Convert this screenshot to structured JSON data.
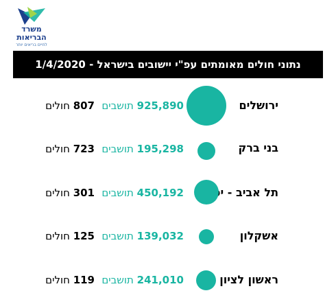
{
  "logo": {
    "line1": "משרד",
    "line2": "הבריאות",
    "line3": "לחיים בריאים יותר"
  },
  "title": "נתוני חולים מאומתים עפ\"י יישובים בישראל - 1/4/2020",
  "units": {
    "residents": "תושבים",
    "patients": "חולים"
  },
  "colors": {
    "accent": "#19b5a2",
    "title_bg": "#000000"
  },
  "cities": [
    {
      "name": "ירושלים",
      "population": "925,890",
      "cases": "807"
    },
    {
      "name": "בני ברק",
      "population": "195,298",
      "cases": "723"
    },
    {
      "name": "תל אביב - יפו",
      "population": "450,192",
      "cases": "301"
    },
    {
      "name": "אשקלון",
      "population": "139,032",
      "cases": "125"
    },
    {
      "name": "ראשון לציון",
      "population": "241,010",
      "cases": "119"
    }
  ]
}
